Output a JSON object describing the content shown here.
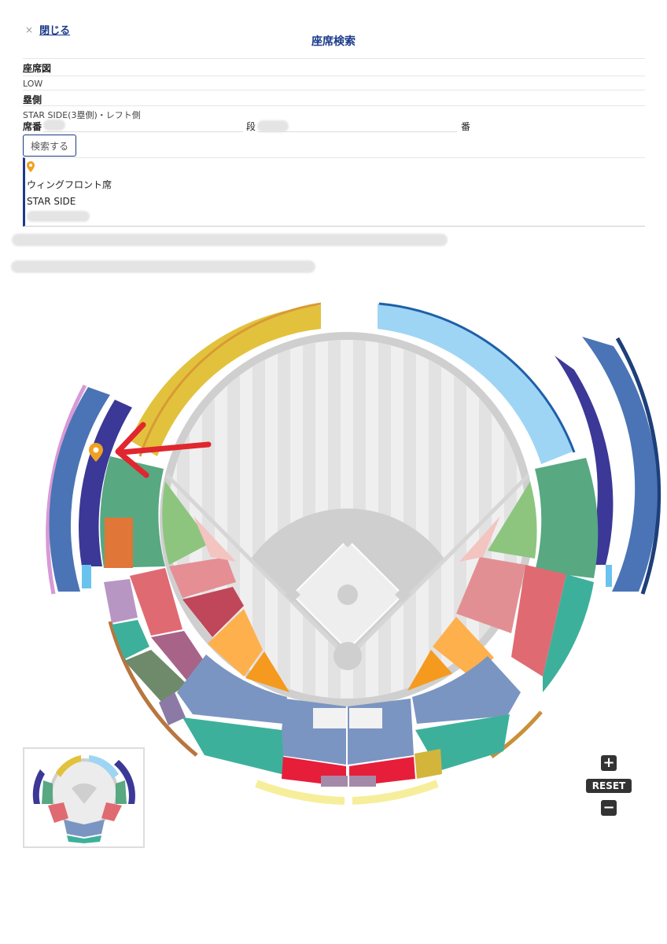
{
  "header": {
    "close_icon": "×",
    "close_label": "閉じる",
    "title": "座席検索"
  },
  "form": {
    "seatmap_label": "座席図",
    "seatmap_value": "LOW",
    "side_label": "塁側",
    "side_value": "STAR SIDE(3塁側)・レフト側",
    "seat_no_label": "席番",
    "row_label": "段",
    "number_label": "番",
    "search_button": "検索する"
  },
  "result": {
    "pin_icon": "map-pin-icon",
    "name": "ウィングフロント席",
    "side": "STAR SIDE"
  },
  "zoom": {
    "plus": "+",
    "reset": "RESET",
    "minus": "−"
  },
  "colors": {
    "accent": "#1a3a8a",
    "pin": "#f0a020",
    "arrow": "#e0262e"
  }
}
